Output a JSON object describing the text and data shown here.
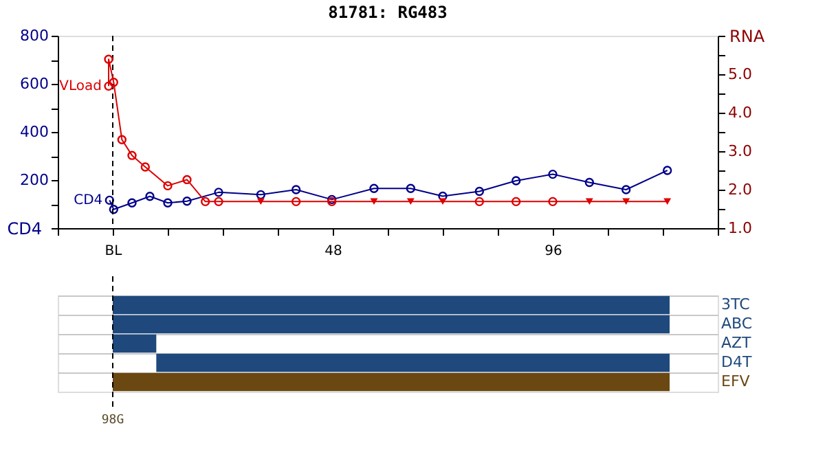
{
  "chart_data": [
    {
      "type": "line",
      "title": "81781: RG483",
      "ylabel": "CD4",
      "y2label": "RNA",
      "xlim": [
        -12,
        132
      ],
      "xticks": [
        {
          "value": -12,
          "label": null
        },
        {
          "value": 0,
          "label": "BL"
        },
        {
          "value": 12,
          "label": null
        },
        {
          "value": 24,
          "label": null
        },
        {
          "value": 36,
          "label": null
        },
        48,
        {
          "value": 60,
          "label": null
        },
        {
          "value": 72,
          "label": null
        },
        {
          "value": 84,
          "label": null
        },
        96,
        {
          "value": 108,
          "label": null
        },
        {
          "value": 120,
          "label": null
        },
        {
          "value": 132,
          "label": null
        }
      ],
      "ylim": [
        0,
        800
      ],
      "yticks": [
        {
          "value": 0,
          "label": null
        },
        {
          "value": 100,
          "label": null
        },
        200,
        {
          "value": 300,
          "label": null
        },
        400,
        {
          "value": 500,
          "label": null
        },
        600,
        {
          "value": 700,
          "label": null
        },
        800
      ],
      "y2lim": [
        1,
        6
      ],
      "y2ticks": [
        {
          "value": 1,
          "label": "1.0"
        },
        {
          "value": 1.5,
          "label": null
        },
        {
          "value": 2,
          "label": "2.0"
        },
        {
          "value": 2.5,
          "label": null
        },
        {
          "value": 3,
          "label": "3.0"
        },
        {
          "value": 3.5,
          "label": null
        },
        {
          "value": 4,
          "label": "4.0"
        },
        {
          "value": 4.5,
          "label": null
        },
        {
          "value": 5,
          "label": "5.0"
        },
        {
          "value": 5.5,
          "label": null
        },
        {
          "value": 6,
          "label": null
        }
      ],
      "ref_lines": [
        {
          "axis": "x",
          "value": 0,
          "line_style": "dashed",
          "color": "#000000"
        }
      ],
      "series": [
        {
          "name": "CD4",
          "type": "line",
          "marker": "circle",
          "color": "#00008b",
          "x": [
            -0.7,
            0.2,
            4.2,
            8.1,
            12,
            16.2,
            23.1,
            32.3,
            40,
            47.8,
            57,
            65,
            72,
            80,
            88,
            96,
            104,
            112,
            121
          ],
          "values": [
            116,
            78,
            105,
            132,
            105,
            112,
            149,
            139,
            160,
            119,
            165,
            165,
            133,
            153,
            197,
            224,
            190,
            160,
            240
          ]
        },
        {
          "name": "VLoad",
          "type": "line",
          "marker": "none",
          "axis": "y2",
          "color": "#dd0000",
          "x": [
            -0.9,
            -0.9,
            0.2,
            2,
            4.2,
            7.1,
            12,
            16.2,
            20.2,
            23.1,
            32.3,
            40,
            47.8,
            57,
            65,
            72,
            80,
            88,
            96,
            104,
            112,
            121
          ],
          "values": [
            4.69,
            5.39,
            4.79,
            3.3,
            2.89,
            2.59,
            2.1,
            2.26,
            1.69,
            1.69,
            1.69,
            1.69,
            1.69,
            1.69,
            1.69,
            1.69,
            1.69,
            1.69,
            1.69,
            1.69,
            1.69,
            1.69
          ]
        },
        {
          "type": "scatter",
          "marker": "circle",
          "axis": "y2",
          "color": "#dd0000",
          "x": [
            -0.9,
            -0.9,
            0.2,
            2,
            4.2,
            7.1,
            12,
            16.2,
            20.2,
            23.1,
            40,
            47.8,
            80,
            88,
            96
          ],
          "values": [
            4.69,
            5.39,
            4.79,
            3.3,
            2.89,
            2.59,
            2.1,
            2.26,
            1.69,
            1.69,
            1.69,
            1.69,
            1.69,
            1.69,
            1.69
          ]
        },
        {
          "type": "scatter",
          "marker": "triangle",
          "axis": "y2",
          "color": "#dd0000",
          "x": [
            32.3,
            57,
            65,
            72,
            104,
            112,
            121
          ],
          "values": [
            1.69,
            1.69,
            1.69,
            1.69,
            1.69,
            1.69,
            1.69
          ]
        }
      ]
    },
    {
      "type": "bar",
      "orientation": "horizontal",
      "categories": [
        "3TC",
        "ABC",
        "AZT",
        "D4T",
        "EFV"
      ],
      "base": [
        0,
        0,
        0,
        9.5,
        0
      ],
      "values": [
        121.5,
        121.5,
        9.5,
        112,
        121.5
      ],
      "colors": [
        "#1f497d",
        "#1f497d",
        "#1f497d",
        "#1f497d",
        "#6b4712"
      ],
      "xlim": [
        -12,
        132
      ],
      "tick_labels": "y",
      "grid": "y",
      "ref_lines": [
        {
          "axis": "x",
          "value": 0,
          "line_style": "dashed",
          "color": "#000000"
        }
      ],
      "annotations": [
        "98G"
      ]
    }
  ]
}
